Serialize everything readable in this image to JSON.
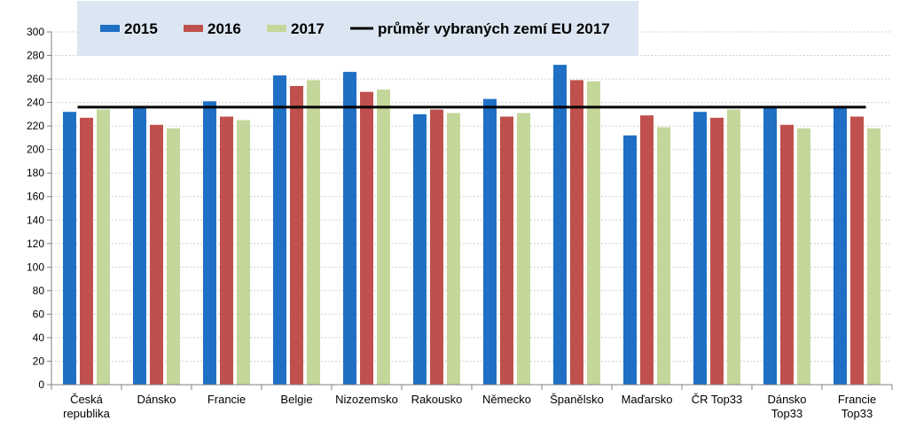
{
  "chart_data": {
    "type": "bar",
    "title": "",
    "xlabel": "",
    "ylabel": "",
    "ylim": [
      0,
      300
    ],
    "yticks": [
      0,
      20,
      40,
      60,
      80,
      100,
      120,
      140,
      160,
      180,
      200,
      220,
      240,
      260,
      280,
      300
    ],
    "grid": true,
    "legend_position": "top",
    "categories": [
      [
        "Česká",
        "republika"
      ],
      [
        "Dánsko"
      ],
      [
        "Francie"
      ],
      [
        "Belgie"
      ],
      [
        "Nizozemsko"
      ],
      [
        "Rakousko"
      ],
      [
        "Německo"
      ],
      [
        "Španělsko"
      ],
      [
        "Maďarsko"
      ],
      [
        "ČR Top33"
      ],
      [
        "Dánsko",
        "Top33"
      ],
      [
        "Francie",
        "Top33"
      ]
    ],
    "series": [
      {
        "name": "2015",
        "color": "#1f6fc5",
        "values": [
          232,
          236,
          241,
          263,
          266,
          230,
          243,
          272,
          212,
          232,
          236,
          236
        ]
      },
      {
        "name": "2016",
        "color": "#c0504d",
        "values": [
          227,
          221,
          228,
          254,
          249,
          234,
          228,
          259,
          229,
          227,
          221,
          228
        ]
      },
      {
        "name": "2017",
        "color": "#c4d79b",
        "values": [
          234,
          218,
          225,
          259,
          251,
          231,
          231,
          258,
          219,
          234,
          218,
          218
        ]
      }
    ],
    "reference_line": {
      "name": "průměr vybraných zemí EU 2017",
      "value": 236,
      "color": "#000000"
    },
    "legend_background": "#dce6f2"
  }
}
